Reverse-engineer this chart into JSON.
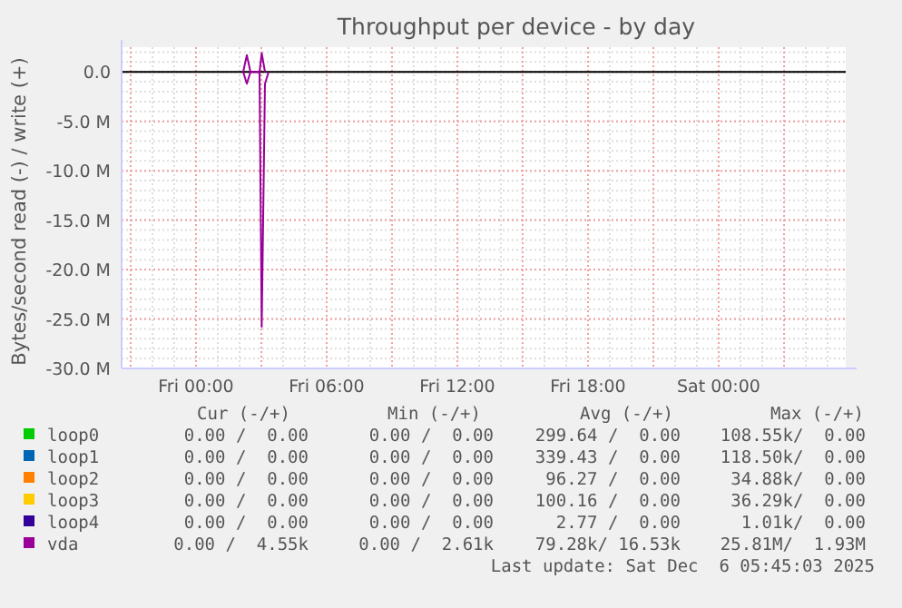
{
  "chart_data": {
    "type": "line",
    "title": "Throughput per device - by day",
    "ylabel": "Bytes/second read (-) / write (+)",
    "xlim": [
      "2025-12-04T20:35",
      "2025-12-06T05:50"
    ],
    "xticks": [
      {
        "value": "2025-12-04T21:00",
        "label": null
      },
      {
        "value": "2025-12-05T00:00",
        "label": "Fri 00:00"
      },
      {
        "value": "2025-12-05T03:00",
        "label": null
      },
      {
        "value": "2025-12-05T06:00",
        "label": "Fri 06:00"
      },
      {
        "value": "2025-12-05T09:00",
        "label": null
      },
      {
        "value": "2025-12-05T12:00",
        "label": "Fri 12:00"
      },
      {
        "value": "2025-12-05T15:00",
        "label": null
      },
      {
        "value": "2025-12-05T18:00",
        "label": "Fri 18:00"
      },
      {
        "value": "2025-12-05T21:00",
        "label": null
      },
      {
        "value": "2025-12-06T00:00",
        "label": "Sat 00:00"
      },
      {
        "value": "2025-12-06T03:00",
        "label": null
      }
    ],
    "ylim": [
      -30000000,
      2500000
    ],
    "yticks": [
      {
        "value": -30000000,
        "label": "-30.0 M"
      },
      {
        "value": -25000000,
        "label": "-25.0 M"
      },
      {
        "value": -20000000,
        "label": "-20.0 M"
      },
      {
        "value": -15000000,
        "label": "-15.0 M"
      },
      {
        "value": -10000000,
        "label": "-10.0 M"
      },
      {
        "value": -5000000,
        "label": "-5.0 M"
      },
      {
        "value": 0,
        "label": "0.0"
      }
    ],
    "grid": true,
    "legend": "bottom",
    "ref_lines": [
      {
        "axis": "y",
        "value": 0,
        "color": "#000000"
      }
    ],
    "series": [
      {
        "name": "loop0",
        "color": "#00cc00"
      },
      {
        "name": "loop1",
        "color": "#0066b3"
      },
      {
        "name": "loop2",
        "color": "#ff8000"
      },
      {
        "name": "loop3",
        "color": "#ffcc00"
      },
      {
        "name": "loop4",
        "color": "#330099"
      },
      {
        "color": "#990099",
        "x": [
          "2025-12-05T02:10",
          "2025-12-05T02:20",
          "2025-12-05T02:30",
          "2025-12-05T02:55",
          "2025-12-05T03:01",
          "2025-12-05T03:10"
        ],
        "values": [
          0,
          1700000,
          0,
          0,
          1900000,
          0
        ]
      },
      {
        "name": "vda",
        "color": "#990099",
        "x": [
          "2025-12-05T02:10",
          "2025-12-05T02:20",
          "2025-12-05T02:30",
          "2025-12-05T02:55",
          "2025-12-05T03:01",
          "2025-12-05T03:10",
          "2025-12-05T03:20"
        ],
        "values": [
          0,
          -1200000,
          0,
          0,
          -25800000,
          -1200000,
          0
        ]
      }
    ],
    "annotations": [
      "Cur (-/+)",
      "Min (-/+)",
      "Avg (-/+)",
      "Max (-/+)",
      "0.00 /  0.00",
      "0.00 /  0.00",
      "299.64 /  0.00",
      "108.55k/  0.00",
      "0.00 /  0.00",
      "0.00 /  0.00",
      "339.43 /  0.00",
      "118.50k/  0.00",
      "0.00 /  0.00",
      "0.00 /  0.00",
      "96.27 /  0.00",
      "34.88k/  0.00",
      "0.00 /  0.00",
      "0.00 /  0.00",
      "100.16 /  0.00",
      "36.29k/  0.00",
      "0.00 /  0.00",
      "0.00 /  0.00",
      "2.77 /  0.00",
      "1.01k/  0.00",
      "0.00 /  4.55k",
      "0.00 /  2.61k",
      "79.28k/ 16.53k",
      "25.81M/  1.93M",
      "Last update: Sat Dec  6 05:45:03 2025"
    ]
  }
}
